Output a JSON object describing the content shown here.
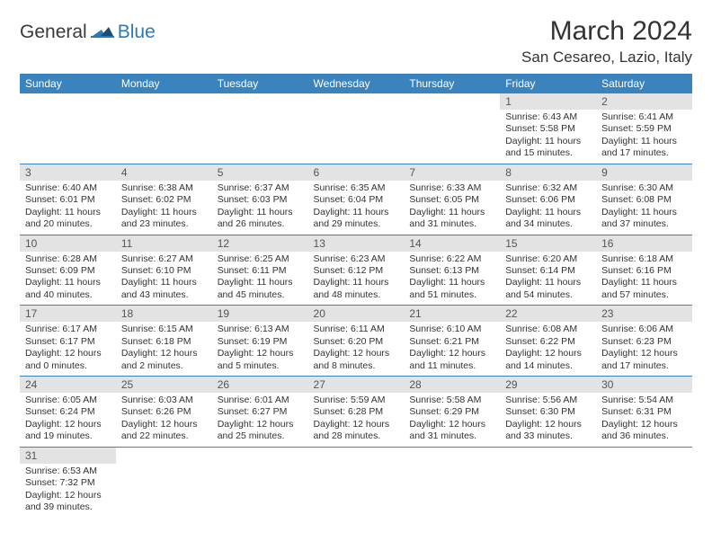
{
  "brand": {
    "general": "General",
    "blue": "Blue"
  },
  "title": "March 2024",
  "location": "San Cesareo, Lazio, Italy",
  "colors": {
    "header_bg": "#3b83bd",
    "header_text": "#ffffff",
    "daynum_bg": "#e3e3e3",
    "rule": "#3b83bd",
    "logo_blue": "#2a7ab8",
    "logo_dark": "#1a4e78"
  },
  "fonts": {
    "title_size": 30,
    "location_size": 17,
    "header_size": 12,
    "cell_size": 10.5
  },
  "dayNames": [
    "Sunday",
    "Monday",
    "Tuesday",
    "Wednesday",
    "Thursday",
    "Friday",
    "Saturday"
  ],
  "weeks": [
    [
      null,
      null,
      null,
      null,
      null,
      {
        "n": "1",
        "sunrise": "6:43 AM",
        "sunset": "5:58 PM",
        "daylight": "11 hours and 15 minutes."
      },
      {
        "n": "2",
        "sunrise": "6:41 AM",
        "sunset": "5:59 PM",
        "daylight": "11 hours and 17 minutes."
      }
    ],
    [
      {
        "n": "3",
        "sunrise": "6:40 AM",
        "sunset": "6:01 PM",
        "daylight": "11 hours and 20 minutes."
      },
      {
        "n": "4",
        "sunrise": "6:38 AM",
        "sunset": "6:02 PM",
        "daylight": "11 hours and 23 minutes."
      },
      {
        "n": "5",
        "sunrise": "6:37 AM",
        "sunset": "6:03 PM",
        "daylight": "11 hours and 26 minutes."
      },
      {
        "n": "6",
        "sunrise": "6:35 AM",
        "sunset": "6:04 PM",
        "daylight": "11 hours and 29 minutes."
      },
      {
        "n": "7",
        "sunrise": "6:33 AM",
        "sunset": "6:05 PM",
        "daylight": "11 hours and 31 minutes."
      },
      {
        "n": "8",
        "sunrise": "6:32 AM",
        "sunset": "6:06 PM",
        "daylight": "11 hours and 34 minutes."
      },
      {
        "n": "9",
        "sunrise": "6:30 AM",
        "sunset": "6:08 PM",
        "daylight": "11 hours and 37 minutes."
      }
    ],
    [
      {
        "n": "10",
        "sunrise": "6:28 AM",
        "sunset": "6:09 PM",
        "daylight": "11 hours and 40 minutes."
      },
      {
        "n": "11",
        "sunrise": "6:27 AM",
        "sunset": "6:10 PM",
        "daylight": "11 hours and 43 minutes."
      },
      {
        "n": "12",
        "sunrise": "6:25 AM",
        "sunset": "6:11 PM",
        "daylight": "11 hours and 45 minutes."
      },
      {
        "n": "13",
        "sunrise": "6:23 AM",
        "sunset": "6:12 PM",
        "daylight": "11 hours and 48 minutes."
      },
      {
        "n": "14",
        "sunrise": "6:22 AM",
        "sunset": "6:13 PM",
        "daylight": "11 hours and 51 minutes."
      },
      {
        "n": "15",
        "sunrise": "6:20 AM",
        "sunset": "6:14 PM",
        "daylight": "11 hours and 54 minutes."
      },
      {
        "n": "16",
        "sunrise": "6:18 AM",
        "sunset": "6:16 PM",
        "daylight": "11 hours and 57 minutes."
      }
    ],
    [
      {
        "n": "17",
        "sunrise": "6:17 AM",
        "sunset": "6:17 PM",
        "daylight": "12 hours and 0 minutes."
      },
      {
        "n": "18",
        "sunrise": "6:15 AM",
        "sunset": "6:18 PM",
        "daylight": "12 hours and 2 minutes."
      },
      {
        "n": "19",
        "sunrise": "6:13 AM",
        "sunset": "6:19 PM",
        "daylight": "12 hours and 5 minutes."
      },
      {
        "n": "20",
        "sunrise": "6:11 AM",
        "sunset": "6:20 PM",
        "daylight": "12 hours and 8 minutes."
      },
      {
        "n": "21",
        "sunrise": "6:10 AM",
        "sunset": "6:21 PM",
        "daylight": "12 hours and 11 minutes."
      },
      {
        "n": "22",
        "sunrise": "6:08 AM",
        "sunset": "6:22 PM",
        "daylight": "12 hours and 14 minutes."
      },
      {
        "n": "23",
        "sunrise": "6:06 AM",
        "sunset": "6:23 PM",
        "daylight": "12 hours and 17 minutes."
      }
    ],
    [
      {
        "n": "24",
        "sunrise": "6:05 AM",
        "sunset": "6:24 PM",
        "daylight": "12 hours and 19 minutes."
      },
      {
        "n": "25",
        "sunrise": "6:03 AM",
        "sunset": "6:26 PM",
        "daylight": "12 hours and 22 minutes."
      },
      {
        "n": "26",
        "sunrise": "6:01 AM",
        "sunset": "6:27 PM",
        "daylight": "12 hours and 25 minutes."
      },
      {
        "n": "27",
        "sunrise": "5:59 AM",
        "sunset": "6:28 PM",
        "daylight": "12 hours and 28 minutes."
      },
      {
        "n": "28",
        "sunrise": "5:58 AM",
        "sunset": "6:29 PM",
        "daylight": "12 hours and 31 minutes."
      },
      {
        "n": "29",
        "sunrise": "5:56 AM",
        "sunset": "6:30 PM",
        "daylight": "12 hours and 33 minutes."
      },
      {
        "n": "30",
        "sunrise": "5:54 AM",
        "sunset": "6:31 PM",
        "daylight": "12 hours and 36 minutes."
      }
    ],
    [
      {
        "n": "31",
        "sunrise": "6:53 AM",
        "sunset": "7:32 PM",
        "daylight": "12 hours and 39 minutes."
      },
      null,
      null,
      null,
      null,
      null,
      null
    ]
  ],
  "labels": {
    "sunrise": "Sunrise:",
    "sunset": "Sunset:",
    "daylight": "Daylight:"
  }
}
